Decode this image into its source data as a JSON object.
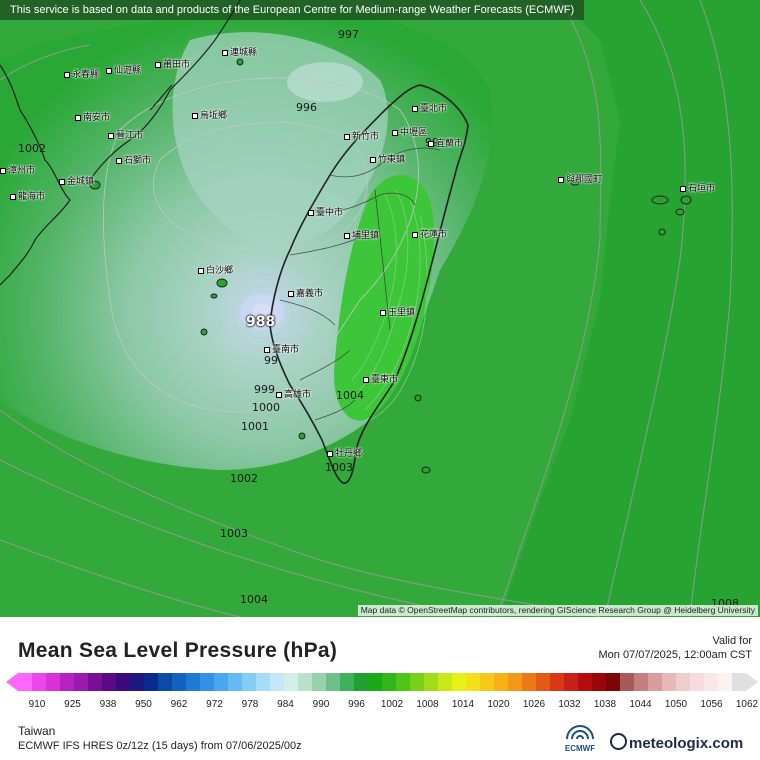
{
  "map": {
    "disclaimer": "This service is based on data and products of the European Centre for Medium-range Weather Forecasts (ECMWF)",
    "attribution": "Map data © OpenStreetMap contributors, rendering GIScience Research Group @ Heidelberg University",
    "isobar_labels": [
      "997",
      "996",
      "1002",
      "99",
      "988",
      "99",
      "999",
      "1000",
      "1001",
      "1004",
      "1003",
      "1002",
      "1003",
      "1004",
      "1008"
    ],
    "cities": [
      "連城縣",
      "永春縣",
      "仙遊縣",
      "莆田市",
      "南安市",
      "晉江市",
      "石獅市",
      "烏坵鄉",
      "漳州市",
      "龍海市",
      "金城鎮",
      "臺北市",
      "新竹市",
      "中壢區",
      "宜蘭市",
      "竹東鎮",
      "與那國町",
      "石垣市",
      "臺中市",
      "埔里鎮",
      "花蓮市",
      "白沙鄉",
      "嘉義市",
      "玉里鎮",
      "臺南市",
      "高雄市",
      "臺東市",
      "牡丹鄉"
    ],
    "colors": {
      "low_center": "#c8d8f0",
      "near_low": "#b4d8cc",
      "mid": "#98c8b0",
      "high": "#2fae2f",
      "ridge": "#3fc83a",
      "land_line": "#222222"
    }
  },
  "footer": {
    "title": "Mean Sea Level Pressure (hPa)",
    "valid_label": "Valid for",
    "valid_time": "Mon 07/07/2025, 12:00am CST",
    "scale_ticks": [
      "910",
      "925",
      "938",
      "950",
      "962",
      "972",
      "978",
      "984",
      "990",
      "996",
      "1002",
      "1008",
      "1014",
      "1020",
      "1026",
      "1032",
      "1038",
      "1044",
      "1050",
      "1056",
      "1062"
    ],
    "scale_colors": [
      "#ff66ff",
      "#ee44ee",
      "#d633d6",
      "#b522c4",
      "#9a1ab0",
      "#7a0e96",
      "#5a0a86",
      "#3a0a7e",
      "#1a1a80",
      "#0a2a90",
      "#0a4aa8",
      "#1262c0",
      "#1f7ad6",
      "#3290e6",
      "#4aa6f0",
      "#66baf4",
      "#86cdf6",
      "#a6dcf8",
      "#c6e8f6",
      "#d4eee8",
      "#b8e2cc",
      "#96d2ae",
      "#6cc08c",
      "#40b05a",
      "#1ea032",
      "#18a818",
      "#30b618",
      "#50c418",
      "#78d018",
      "#a0dc18",
      "#c8e818",
      "#e8f018",
      "#f4e018",
      "#f8c818",
      "#f8b018",
      "#f49818",
      "#ec7818",
      "#e45818",
      "#d83818",
      "#c82018",
      "#b40c10",
      "#980808",
      "#7a0606",
      "#a85a5a",
      "#c48080",
      "#d89c9c",
      "#e8b8b8",
      "#f0cccc",
      "#f6dcdc",
      "#fae8e8",
      "#fcf2f2",
      "#e0e0e0"
    ],
    "region": "Taiwan",
    "model_line": "ECMWF IFS HRES 0z/12z (15 days) from 07/06/2025/00z",
    "ecmwf_logo": "ECMWF",
    "brand": "meteologix.com"
  }
}
